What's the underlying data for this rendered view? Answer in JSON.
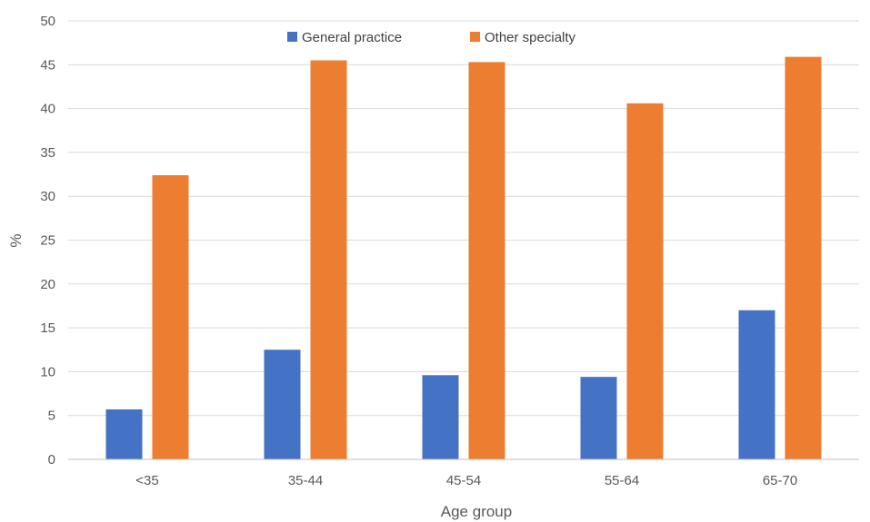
{
  "chart_data": {
    "type": "bar",
    "title": "",
    "xlabel": "Age group",
    "ylabel": "%",
    "ylim": [
      0,
      50
    ],
    "yticks": [
      0,
      5,
      10,
      15,
      20,
      25,
      30,
      35,
      40,
      45,
      50
    ],
    "grid": true,
    "legend_position": "top-center",
    "categories": [
      "<35",
      "35-44",
      "45-54",
      "55-64",
      "65-70"
    ],
    "series": [
      {
        "name": "General practice",
        "color": "#4472C4",
        "values": [
          5.7,
          12.5,
          9.6,
          9.4,
          17.0
        ]
      },
      {
        "name": "Other specialty",
        "color": "#ED7D31",
        "values": [
          32.4,
          45.5,
          45.3,
          40.6,
          45.9
        ]
      }
    ]
  }
}
